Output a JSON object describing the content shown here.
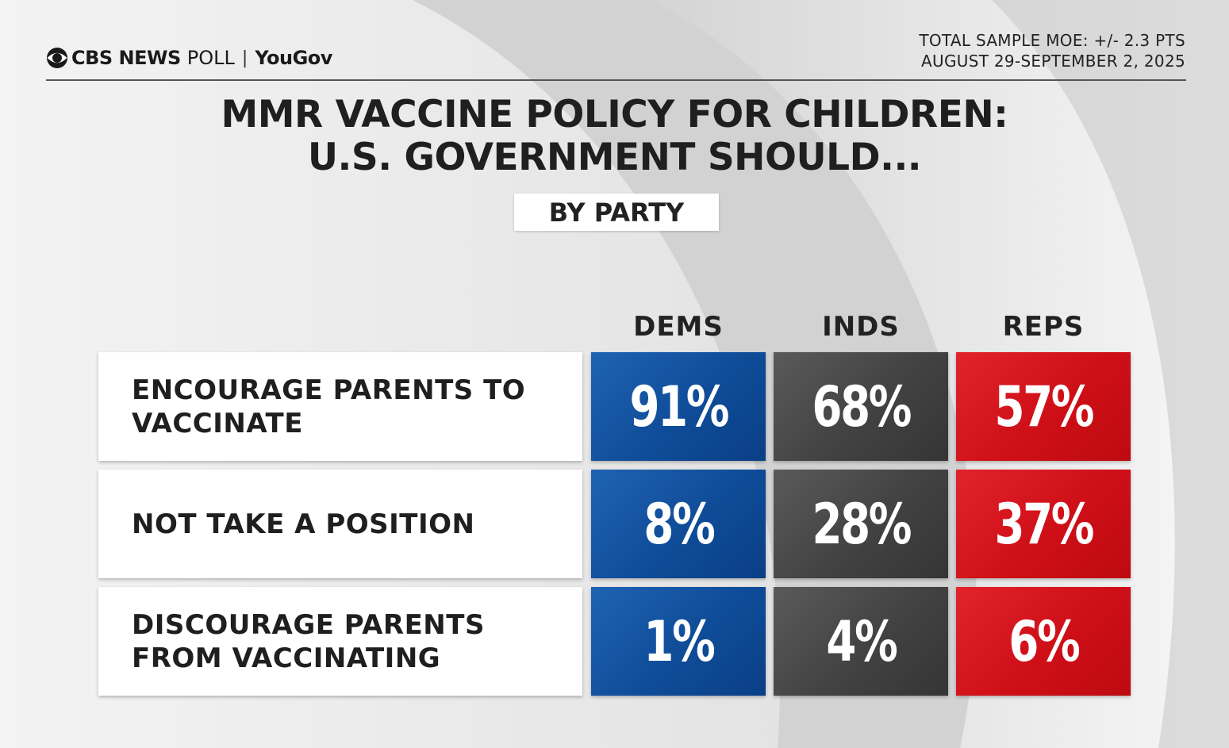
{
  "header": {
    "brand": "CBS NEWS",
    "poll_word": "POLL",
    "separator": "|",
    "partner": "YouGov",
    "moe": "TOTAL SAMPLE MOE: +/- 2.3 PTS",
    "dates": "AUGUST 29-SEPTEMBER 2, 2025"
  },
  "title_lines": [
    "MMR VACCINE POLICY FOR CHILDREN:",
    "U.S. GOVERNMENT SHOULD..."
  ],
  "subtitle": "BY PARTY",
  "chart_data": {
    "type": "table",
    "title": "MMR VACCINE POLICY FOR CHILDREN: U.S. GOVERNMENT SHOULD...",
    "subtitle": "BY PARTY",
    "columns": [
      "DEMS",
      "INDS",
      "REPS"
    ],
    "rows": [
      "ENCOURAGE PARENTS TO\nVACCINATE",
      "NOT TAKE A POSITION",
      "DISCOURAGE PARENTS\nFROM VACCINATING"
    ],
    "values": [
      [
        "91%",
        "68%",
        "57%"
      ],
      [
        "8%",
        "28%",
        "37%"
      ],
      [
        "1%",
        "4%",
        "6%"
      ]
    ],
    "colors": {
      "DEMS": "#0f4c98",
      "INDS": "#444444",
      "REPS": "#d0101a"
    }
  }
}
